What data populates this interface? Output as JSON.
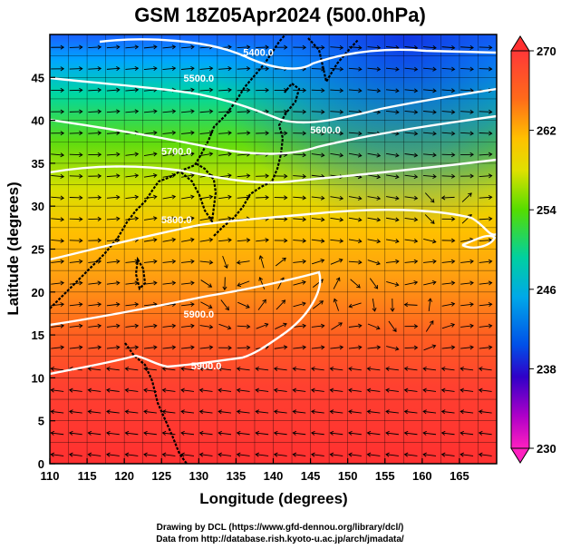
{
  "chart_data": {
    "type": "heatmap",
    "title": "GSM 18Z05Apr2024 (500.0hPa)",
    "xlabel": "Longitude (degrees)",
    "ylabel": "Latitude  (degrees)",
    "xlim": [
      110,
      170
    ],
    "ylim": [
      0,
      50
    ],
    "x_ticks": [
      "110",
      "115",
      "120",
      "125",
      "130",
      "135",
      "140",
      "145",
      "150",
      "155",
      "160",
      "165"
    ],
    "y_ticks": [
      "0",
      "5",
      "10",
      "15",
      "20",
      "25",
      "30",
      "35",
      "40",
      "45"
    ],
    "colorbar": {
      "range": [
        230,
        270
      ],
      "labels": [
        "270",
        "262",
        "254",
        "246",
        "238",
        "230"
      ],
      "colors": [
        "#ff3838",
        "#ff7a1a",
        "#ffc000",
        "#e8e000",
        "#55dd00",
        "#00d0a0",
        "#00a8e8",
        "#0050e8",
        "#3000c8",
        "#c000c0",
        "#ff20c0"
      ]
    },
    "temperature_band_latitudes": [
      {
        "lat": 49,
        "value": 240
      },
      {
        "lat": 45,
        "value": 246
      },
      {
        "lat": 40,
        "value": 251
      },
      {
        "lat": 35,
        "value": 256
      },
      {
        "lat": 30,
        "value": 259
      },
      {
        "lat": 25,
        "value": 262
      },
      {
        "lat": 20,
        "value": 264
      },
      {
        "lat": 15,
        "value": 266
      },
      {
        "lat": 10,
        "value": 267
      },
      {
        "lat": 5,
        "value": 268
      },
      {
        "lat": 0,
        "value": 269
      }
    ],
    "height_contours": [
      {
        "label": "5400.0",
        "label_lon": 138,
        "label_lat": 47.5
      },
      {
        "label": "5500.0",
        "label_lon": 130,
        "label_lat": 44.5
      },
      {
        "label": "5600.0",
        "label_lon": 147,
        "label_lat": 38.5
      },
      {
        "label": "5700.0",
        "label_lon": 127,
        "label_lat": 36
      },
      {
        "label": "5800.0",
        "label_lon": 127,
        "label_lat": 28
      },
      {
        "label": "5900.0",
        "label_lon": 130,
        "label_lat": 17
      },
      {
        "label": "5900.0",
        "label_lon": 131,
        "label_lat": 11
      }
    ],
    "grid": true
  },
  "credits": {
    "line1": "Drawing by DCL (https://www.gfd-dennou.org/library/dcl/)",
    "line2": "Data from http://database.rish.kyoto-u.ac.jp/arch/jmadata/"
  }
}
